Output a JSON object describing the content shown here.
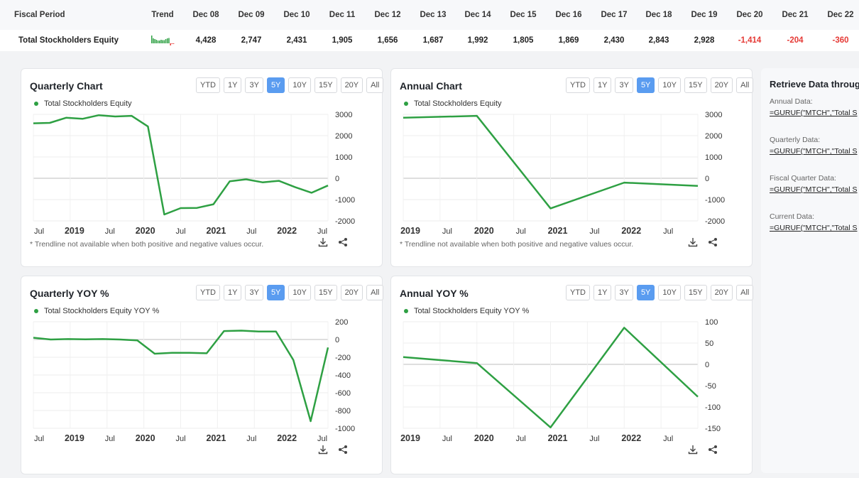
{
  "table": {
    "header_label": "Fiscal Period",
    "trend_label": "Trend",
    "periods": [
      "Dec 08",
      "Dec 09",
      "Dec 10",
      "Dec 11",
      "Dec 12",
      "Dec 13",
      "Dec 14",
      "Dec 15",
      "Dec 16",
      "Dec 17",
      "Dec 18",
      "Dec 19",
      "Dec 20",
      "Dec 21",
      "Dec 22"
    ],
    "row_label": "Total Stockholders Equity",
    "values": [
      "4,428",
      "2,747",
      "2,431",
      "1,905",
      "1,656",
      "1,687",
      "1,992",
      "1,805",
      "1,869",
      "2,430",
      "2,843",
      "2,928",
      "-1,414",
      "-204",
      "-360"
    ],
    "negative_color": "#e53935",
    "trend_color": "#2ea043"
  },
  "range_buttons": [
    "YTD",
    "1Y",
    "3Y",
    "5Y",
    "10Y",
    "15Y",
    "20Y",
    "All"
  ],
  "active_range": "5Y",
  "colors": {
    "series": "#2ea043",
    "active_button": "#5a9cf0"
  },
  "note_text": "* Trendline not available when both positive and negative values occur.",
  "icons": {
    "download": "download-icon",
    "share": "share-icon"
  },
  "charts": {
    "quarterly": {
      "title": "Quarterly Chart",
      "chart_data": {
        "type": "line",
        "series": [
          {
            "name": "Total Stockholders Equity",
            "values": [
              2580,
              2600,
              2840,
              2790,
              2960,
              2900,
              2930,
              2430,
              -1700,
              -1400,
              -1390,
              -1220,
              -140,
              -50,
              -190,
              -120,
              -420,
              -680,
              -340
            ]
          }
        ],
        "x": [
          2018.5,
          2018.75,
          2019.0,
          2019.25,
          2019.5,
          2019.75,
          2020.0,
          2020.25,
          2020.5,
          2020.75,
          2021.0,
          2021.25,
          2021.5,
          2021.75,
          2022.0,
          2022.25,
          2022.5,
          2022.75,
          2023.0
        ],
        "x_ticks": [
          "Jul",
          "2019",
          "Jul",
          "2020",
          "Jul",
          "2021",
          "Jul",
          "2022",
          "Jul"
        ],
        "y_ticks": [
          "3000",
          "2000",
          "1000",
          "0",
          "-1000",
          "-2000"
        ],
        "ylim": [
          -2000,
          3000
        ]
      }
    },
    "annual": {
      "title": "Annual Chart",
      "chart_data": {
        "type": "line",
        "series": [
          {
            "name": "Total Stockholders Equity",
            "values": [
              2843,
              2928,
              -1414,
              -204,
              -360
            ]
          }
        ],
        "categories": [
          "Dec 18",
          "Dec 19",
          "Dec 20",
          "Dec 21",
          "Dec 22"
        ],
        "x_ticks": [
          "2019",
          "Jul",
          "2020",
          "Jul",
          "2021",
          "Jul",
          "2022",
          "Jul"
        ],
        "y_ticks": [
          "3000",
          "2000",
          "1000",
          "0",
          "-1000",
          "-2000"
        ],
        "ylim": [
          -2000,
          3000
        ]
      }
    },
    "quarterly_yoy": {
      "title": "Quarterly YOY %",
      "chart_data": {
        "type": "line",
        "series": [
          {
            "name": "Total Stockholders Equity YOY %",
            "values": [
              20,
              0,
              5,
              2,
              5,
              0,
              -10,
              -160,
              -150,
              -150,
              -155,
              95,
              100,
              90,
              90,
              -230,
              -920,
              -90
            ]
          }
        ],
        "x": [
          2018.5,
          2018.75,
          2019.0,
          2019.25,
          2019.5,
          2019.75,
          2020.0,
          2020.25,
          2020.5,
          2020.75,
          2021.0,
          2021.25,
          2021.5,
          2021.75,
          2022.0,
          2022.25,
          2022.5,
          2022.75
        ],
        "x_ticks": [
          "Jul",
          "2019",
          "Jul",
          "2020",
          "Jul",
          "2021",
          "Jul",
          "2022",
          "Jul"
        ],
        "y_ticks": [
          "200",
          "0",
          "-200",
          "-400",
          "-600",
          "-800",
          "-1000"
        ],
        "ylim": [
          -1000,
          200
        ]
      }
    },
    "annual_yoy": {
      "title": "Annual YOY %",
      "chart_data": {
        "type": "line",
        "series": [
          {
            "name": "Total Stockholders Equity YOY %",
            "values": [
              17,
              3,
              -148,
              86,
              -76
            ]
          }
        ],
        "categories": [
          "Dec 18",
          "Dec 19",
          "Dec 20",
          "Dec 21",
          "Dec 22"
        ],
        "x_ticks": [
          "2019",
          "Jul",
          "2020",
          "Jul",
          "2021",
          "Jul",
          "2022",
          "Jul"
        ],
        "y_ticks": [
          "100",
          "50",
          "0",
          "-50",
          "-100",
          "-150"
        ],
        "ylim": [
          -150,
          100
        ]
      }
    }
  },
  "side": {
    "title": "Retrieve Data through",
    "items": [
      {
        "label": "Annual Data:",
        "formula": "=GURUF(\"MTCH\",\"Total S"
      },
      {
        "label": "Quarterly Data:",
        "formula": "=GURUF(\"MTCH\",\"Total S"
      },
      {
        "label": "Fiscal Quarter Data:",
        "formula": "=GURUF(\"MTCH\",\"Total S"
      },
      {
        "label": "Current Data:",
        "formula": "=GURUF(\"MTCH\",\"Total S"
      }
    ]
  }
}
